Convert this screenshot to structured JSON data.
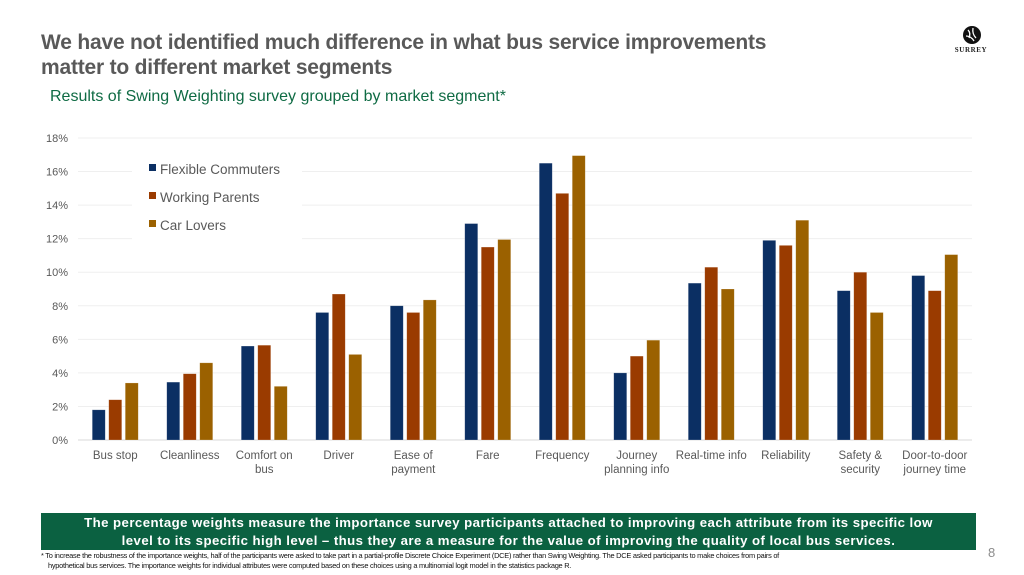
{
  "header": {
    "title_line1": "We have not identified much difference in what bus service improvements",
    "title_line2": "matter to different market segments",
    "subtitle": "Results of Swing Weighting survey grouped by market segment*",
    "logo_text": "SURREY"
  },
  "chart_data": {
    "type": "bar",
    "title": "",
    "xlabel": "",
    "ylabel": "",
    "ylim": [
      0,
      18
    ],
    "yticks": [
      0,
      2,
      4,
      6,
      8,
      10,
      12,
      14,
      16,
      18
    ],
    "ytick_labels": [
      "0%",
      "2%",
      "4%",
      "6%",
      "8%",
      "10%",
      "12%",
      "14%",
      "16%",
      "18%"
    ],
    "grid": true,
    "legend_position": "top-left",
    "categories": [
      [
        "Bus stop"
      ],
      [
        "Cleanliness"
      ],
      [
        "Comfort on",
        "bus"
      ],
      [
        "Driver"
      ],
      [
        "Ease of",
        "payment"
      ],
      [
        "Fare"
      ],
      [
        "Frequency"
      ],
      [
        "Journey",
        "planning info"
      ],
      [
        "Real-time info"
      ],
      [
        "Reliability"
      ],
      [
        "Safety &",
        "security"
      ],
      [
        "Door-to-door",
        "journey time"
      ]
    ],
    "series": [
      {
        "name": "Flexible Commuters",
        "color": "#0b2f63",
        "values": [
          1.8,
          3.45,
          5.6,
          7.6,
          8.0,
          12.9,
          16.5,
          4.0,
          9.35,
          11.9,
          8.9,
          9.8
        ]
      },
      {
        "name": "Working Parents",
        "color": "#9a3b00",
        "values": [
          2.4,
          3.95,
          5.65,
          8.7,
          7.6,
          11.5,
          14.7,
          5.0,
          10.3,
          11.6,
          10.0,
          8.9
        ]
      },
      {
        "name": "Car Lovers",
        "color": "#9b6100",
        "values": [
          3.4,
          4.6,
          3.2,
          5.1,
          8.35,
          11.95,
          16.95,
          5.95,
          9.0,
          13.1,
          7.6,
          11.05
        ]
      }
    ]
  },
  "banner": {
    "line1": "The percentage weights measure the importance survey participants attached to improving each attribute from its specific low",
    "line2": "level to its specific high level – thus they are a measure for the value of improving the quality of local bus services."
  },
  "footnote": {
    "line1": "* To increase the robustness of the importance weights, half of the participants were asked to take part in a partial-profile Discrete Choice Experiment (DCE) rather than Swing Weighting. The DCE asked participants to make choices from pairs of",
    "line2": "hypothetical bus services. The importance weights for individual attributes were computed based on these choices using a multinomial logit model in the statistics package R."
  },
  "page_number": "8"
}
